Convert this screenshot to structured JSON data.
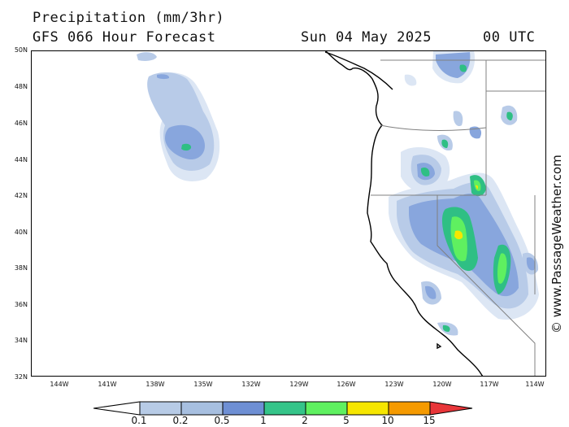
{
  "header": {
    "title": "Precipitation (mm/3hr)",
    "model": "GFS 066 Hour Forecast",
    "date": "Sun 04 May 2025",
    "time": "00 UTC"
  },
  "axes": {
    "lat_labels": [
      "50N",
      "48N",
      "46N",
      "44N",
      "42N",
      "40N",
      "38N",
      "36N",
      "34N",
      "32N"
    ],
    "lon_labels": [
      "144W",
      "141W",
      "138W",
      "135W",
      "132W",
      "129W",
      "126W",
      "123W",
      "120W",
      "117W",
      "114W"
    ]
  },
  "legend": {
    "labels": [
      "0.1",
      "0.2",
      "0.5",
      "1",
      "2",
      "5",
      "10",
      "15"
    ],
    "colors": [
      "#e6edf7",
      "#b7cbe6",
      "#a7bfe0",
      "#6e8fd4",
      "#35c489",
      "#5ff060",
      "#f6e600",
      "#f59a00",
      "#e8363a"
    ]
  },
  "credit": "© www.PassageWeather.com",
  "precip_colors": {
    "light": "#dce6f4",
    "low": "#b8cbe8",
    "mid": "#88a6dd",
    "mod": "#6786d0",
    "green": "#2fbf84",
    "bright": "#5ff060",
    "yellow": "#f6e600"
  }
}
